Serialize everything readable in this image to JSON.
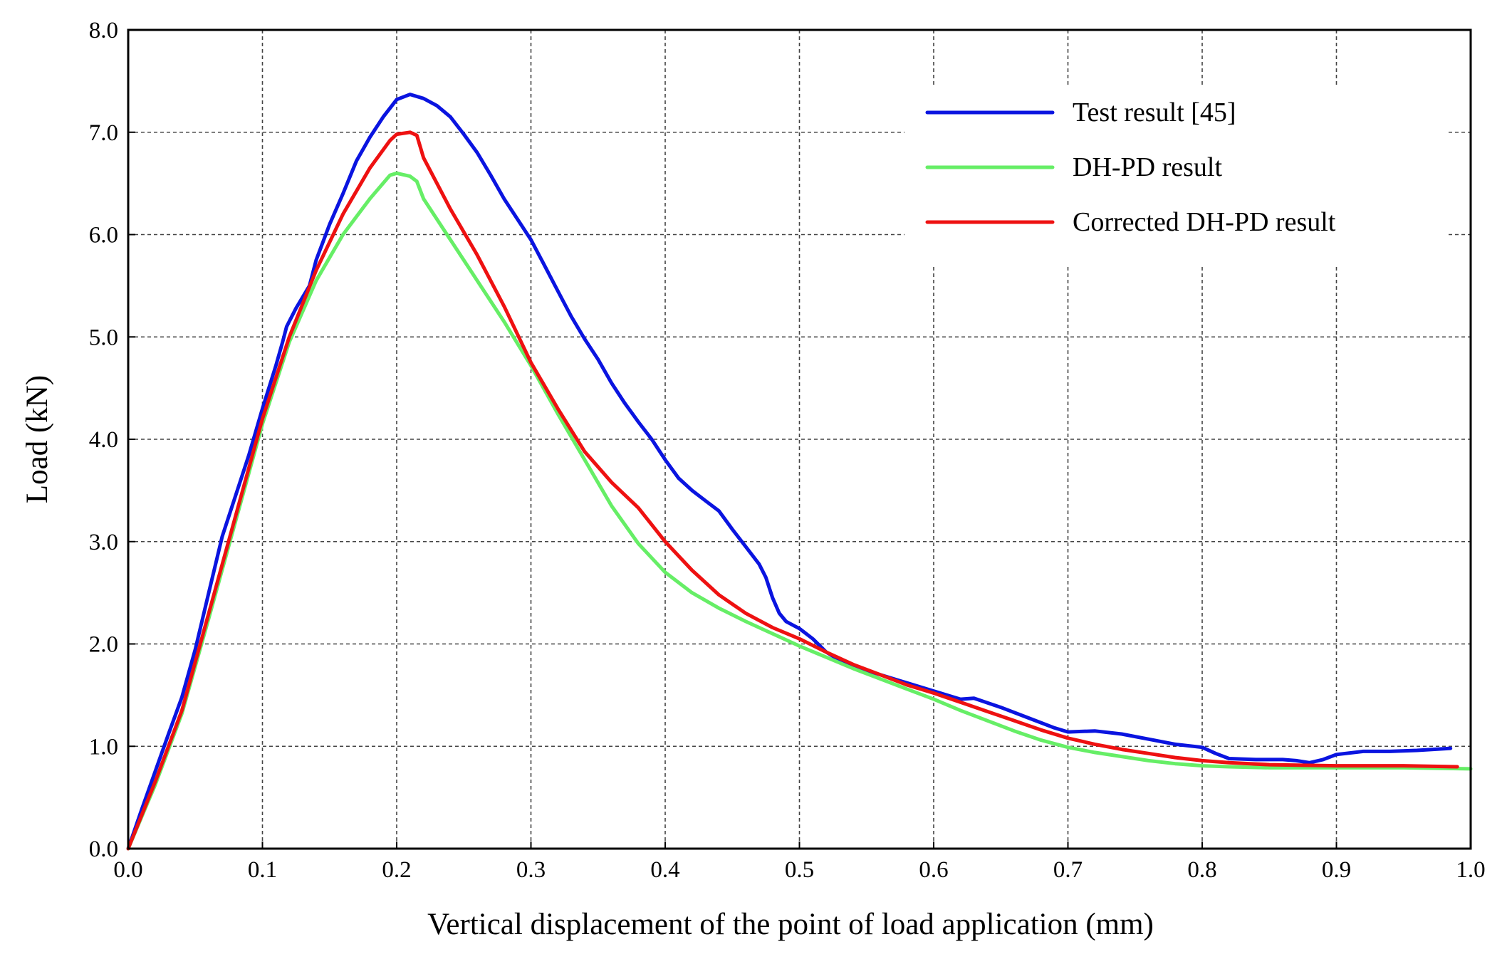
{
  "chart_data": {
    "type": "line",
    "title": "",
    "xlabel": "Vertical displacement  of the point of load application (mm)",
    "ylabel": "Load (kN)",
    "xlim": [
      0.0,
      1.0
    ],
    "ylim": [
      0.0,
      8.0
    ],
    "x_ticks": [
      "0.0",
      "0.1",
      "0.2",
      "0.3",
      "0.4",
      "0.5",
      "0.6",
      "0.7",
      "0.8",
      "0.9",
      "1.0"
    ],
    "y_ticks": [
      "0.0",
      "1.0",
      "2.0",
      "3.0",
      "4.0",
      "5.0",
      "6.0",
      "7.0",
      "8.0"
    ],
    "grid": true,
    "legend_position": "top-right",
    "series": [
      {
        "name": "Test result [45]",
        "color": "#0a14e0",
        "points": [
          [
            0.0,
            0.0
          ],
          [
            0.01,
            0.38
          ],
          [
            0.02,
            0.75
          ],
          [
            0.03,
            1.12
          ],
          [
            0.04,
            1.48
          ],
          [
            0.05,
            1.95
          ],
          [
            0.06,
            2.5
          ],
          [
            0.07,
            3.05
          ],
          [
            0.08,
            3.45
          ],
          [
            0.09,
            3.85
          ],
          [
            0.1,
            4.3
          ],
          [
            0.11,
            4.72
          ],
          [
            0.115,
            4.95
          ],
          [
            0.118,
            5.1
          ],
          [
            0.125,
            5.28
          ],
          [
            0.135,
            5.5
          ],
          [
            0.14,
            5.75
          ],
          [
            0.15,
            6.1
          ],
          [
            0.16,
            6.4
          ],
          [
            0.17,
            6.72
          ],
          [
            0.18,
            6.95
          ],
          [
            0.19,
            7.15
          ],
          [
            0.2,
            7.32
          ],
          [
            0.21,
            7.37
          ],
          [
            0.22,
            7.33
          ],
          [
            0.23,
            7.26
          ],
          [
            0.24,
            7.15
          ],
          [
            0.25,
            6.98
          ],
          [
            0.26,
            6.8
          ],
          [
            0.27,
            6.58
          ],
          [
            0.28,
            6.35
          ],
          [
            0.29,
            6.15
          ],
          [
            0.3,
            5.95
          ],
          [
            0.31,
            5.7
          ],
          [
            0.32,
            5.45
          ],
          [
            0.33,
            5.2
          ],
          [
            0.34,
            4.98
          ],
          [
            0.35,
            4.78
          ],
          [
            0.36,
            4.55
          ],
          [
            0.37,
            4.35
          ],
          [
            0.38,
            4.17
          ],
          [
            0.39,
            4.0
          ],
          [
            0.4,
            3.8
          ],
          [
            0.41,
            3.62
          ],
          [
            0.42,
            3.5
          ],
          [
            0.43,
            3.4
          ],
          [
            0.44,
            3.3
          ],
          [
            0.45,
            3.12
          ],
          [
            0.46,
            2.95
          ],
          [
            0.47,
            2.78
          ],
          [
            0.475,
            2.65
          ],
          [
            0.48,
            2.45
          ],
          [
            0.485,
            2.3
          ],
          [
            0.49,
            2.22
          ],
          [
            0.5,
            2.15
          ],
          [
            0.51,
            2.05
          ],
          [
            0.52,
            1.92
          ],
          [
            0.53,
            1.84
          ],
          [
            0.55,
            1.74
          ],
          [
            0.57,
            1.66
          ],
          [
            0.59,
            1.58
          ],
          [
            0.61,
            1.5
          ],
          [
            0.62,
            1.46
          ],
          [
            0.63,
            1.47
          ],
          [
            0.65,
            1.38
          ],
          [
            0.67,
            1.28
          ],
          [
            0.69,
            1.18
          ],
          [
            0.7,
            1.14
          ],
          [
            0.72,
            1.15
          ],
          [
            0.74,
            1.12
          ],
          [
            0.76,
            1.07
          ],
          [
            0.78,
            1.02
          ],
          [
            0.8,
            0.99
          ],
          [
            0.81,
            0.93
          ],
          [
            0.82,
            0.88
          ],
          [
            0.84,
            0.87
          ],
          [
            0.86,
            0.87
          ],
          [
            0.87,
            0.86
          ],
          [
            0.88,
            0.84
          ],
          [
            0.89,
            0.87
          ],
          [
            0.9,
            0.92
          ],
          [
            0.92,
            0.95
          ],
          [
            0.94,
            0.95
          ],
          [
            0.96,
            0.96
          ],
          [
            0.985,
            0.98
          ]
        ]
      },
      {
        "name": "DH-PD result",
        "color": "#66ee66",
        "points": [
          [
            0.0,
            0.0
          ],
          [
            0.02,
            0.62
          ],
          [
            0.04,
            1.32
          ],
          [
            0.06,
            2.25
          ],
          [
            0.08,
            3.2
          ],
          [
            0.1,
            4.15
          ],
          [
            0.12,
            4.95
          ],
          [
            0.14,
            5.55
          ],
          [
            0.16,
            6.0
          ],
          [
            0.18,
            6.35
          ],
          [
            0.195,
            6.58
          ],
          [
            0.2,
            6.6
          ],
          [
            0.21,
            6.57
          ],
          [
            0.215,
            6.52
          ],
          [
            0.22,
            6.35
          ],
          [
            0.24,
            5.95
          ],
          [
            0.26,
            5.55
          ],
          [
            0.28,
            5.15
          ],
          [
            0.3,
            4.72
          ],
          [
            0.32,
            4.25
          ],
          [
            0.34,
            3.8
          ],
          [
            0.36,
            3.35
          ],
          [
            0.38,
            2.98
          ],
          [
            0.4,
            2.7
          ],
          [
            0.42,
            2.5
          ],
          [
            0.44,
            2.35
          ],
          [
            0.46,
            2.22
          ],
          [
            0.48,
            2.1
          ],
          [
            0.5,
            1.98
          ],
          [
            0.52,
            1.87
          ],
          [
            0.54,
            1.76
          ],
          [
            0.56,
            1.66
          ],
          [
            0.58,
            1.56
          ],
          [
            0.6,
            1.46
          ],
          [
            0.62,
            1.35
          ],
          [
            0.64,
            1.25
          ],
          [
            0.66,
            1.15
          ],
          [
            0.68,
            1.06
          ],
          [
            0.7,
            0.99
          ],
          [
            0.72,
            0.94
          ],
          [
            0.74,
            0.9
          ],
          [
            0.76,
            0.86
          ],
          [
            0.78,
            0.83
          ],
          [
            0.8,
            0.81
          ],
          [
            0.82,
            0.8
          ],
          [
            0.85,
            0.79
          ],
          [
            0.9,
            0.79
          ],
          [
            0.95,
            0.79
          ],
          [
            1.0,
            0.78
          ]
        ]
      },
      {
        "name": "Corrected DH-PD result",
        "color": "#ee1111",
        "points": [
          [
            0.0,
            0.0
          ],
          [
            0.02,
            0.65
          ],
          [
            0.04,
            1.35
          ],
          [
            0.06,
            2.3
          ],
          [
            0.08,
            3.25
          ],
          [
            0.1,
            4.2
          ],
          [
            0.12,
            5.0
          ],
          [
            0.14,
            5.65
          ],
          [
            0.16,
            6.2
          ],
          [
            0.18,
            6.65
          ],
          [
            0.195,
            6.92
          ],
          [
            0.2,
            6.98
          ],
          [
            0.21,
            7.0
          ],
          [
            0.215,
            6.97
          ],
          [
            0.22,
            6.75
          ],
          [
            0.24,
            6.25
          ],
          [
            0.26,
            5.8
          ],
          [
            0.28,
            5.3
          ],
          [
            0.3,
            4.75
          ],
          [
            0.32,
            4.3
          ],
          [
            0.34,
            3.88
          ],
          [
            0.36,
            3.58
          ],
          [
            0.38,
            3.33
          ],
          [
            0.4,
            3.0
          ],
          [
            0.42,
            2.72
          ],
          [
            0.44,
            2.48
          ],
          [
            0.46,
            2.3
          ],
          [
            0.48,
            2.16
          ],
          [
            0.5,
            2.05
          ],
          [
            0.52,
            1.92
          ],
          [
            0.54,
            1.8
          ],
          [
            0.56,
            1.7
          ],
          [
            0.58,
            1.6
          ],
          [
            0.6,
            1.52
          ],
          [
            0.62,
            1.43
          ],
          [
            0.64,
            1.34
          ],
          [
            0.66,
            1.25
          ],
          [
            0.68,
            1.16
          ],
          [
            0.7,
            1.08
          ],
          [
            0.72,
            1.02
          ],
          [
            0.74,
            0.97
          ],
          [
            0.76,
            0.93
          ],
          [
            0.78,
            0.89
          ],
          [
            0.8,
            0.86
          ],
          [
            0.82,
            0.84
          ],
          [
            0.85,
            0.82
          ],
          [
            0.9,
            0.81
          ],
          [
            0.95,
            0.81
          ],
          [
            0.99,
            0.8
          ]
        ]
      }
    ]
  }
}
